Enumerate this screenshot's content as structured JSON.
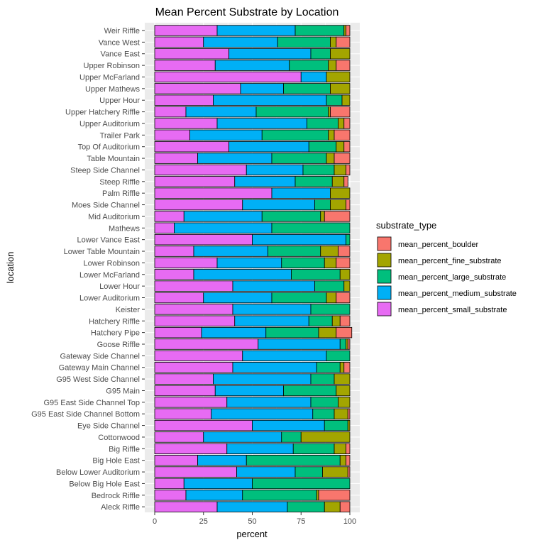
{
  "chart_data": {
    "type": "bar",
    "orientation": "horizontal",
    "stacked": true,
    "title": "Mean Percent Substrate by Location",
    "xlabel": "percent",
    "ylabel": "location",
    "xlim": [
      0,
      100
    ],
    "xticks": [
      "0",
      "25",
      "50",
      "75",
      "100"
    ],
    "grid": true,
    "legend_position": "right",
    "legend_title": "substrate_type",
    "legend_order": [
      "mean_percent_boulder",
      "mean_percent_fine_substrate",
      "mean_percent_large_substrate",
      "mean_percent_medium_substrate",
      "mean_percent_small_substrate"
    ],
    "colors": {
      "mean_percent_small_substrate": "#E76BF3",
      "mean_percent_medium_substrate": "#00B0F6",
      "mean_percent_large_substrate": "#00BF7D",
      "mean_percent_fine_substrate": "#A3A500",
      "mean_percent_boulder": "#F8766D"
    },
    "categories": [
      "Weir Riffle",
      "Vance West",
      "Vance East",
      "Upper Robinson",
      "Upper McFarland",
      "Upper Mathews",
      "Upper Hour",
      "Upper Hatchery Riffle",
      "Upper Auditorium",
      "Trailer Park",
      "Top Of Auditorium",
      "Table Mountain",
      "Steep Side Channel",
      "Steep Riffle",
      "Palm Riffle",
      "Moes Side Channel",
      "Mid Auditorium",
      "Mathews",
      "Lower Vance East",
      "Lower Table Mountain",
      "Lower Robinson",
      "Lower McFarland",
      "Lower Hour",
      "Lower Auditorium",
      "Keister",
      "Hatchery Riffle",
      "Hatchery Pipe",
      "Goose Riffle",
      "Gateway Side Channel",
      "Gateway Main Channel",
      "G95 West Side Channel",
      "G95 Main",
      "G95 East Side Channel Top",
      "G95 East Side Channel Bottom",
      "Eye Side Channel",
      "Cottonwood",
      "Big Riffle",
      "Big Hole East",
      "Below Lower Auditorium",
      "Below Big Hole East",
      "Bedrock Riffle",
      "Aleck Riffle"
    ],
    "series": [
      {
        "name": "mean_percent_small_substrate",
        "values": [
          32,
          25,
          38,
          31,
          75,
          44,
          30,
          16,
          32,
          18,
          38,
          22,
          47,
          41,
          60,
          45,
          15,
          10,
          50,
          20,
          32,
          20,
          40,
          25,
          40,
          41,
          24,
          53,
          45,
          40,
          30,
          31,
          37,
          29,
          50,
          25,
          37,
          22,
          42,
          15,
          16,
          32
        ]
      },
      {
        "name": "mean_percent_medium_substrate",
        "values": [
          40,
          38,
          42,
          38,
          13,
          22,
          58,
          36,
          46,
          37,
          41,
          38,
          29,
          31,
          30,
          37,
          40,
          50,
          48,
          38,
          33,
          50,
          42,
          35,
          40,
          38,
          33,
          42,
          43,
          43,
          50,
          35,
          43,
          52,
          37,
          40,
          34,
          25,
          30,
          35,
          29,
          36
        ]
      },
      {
        "name": "mean_percent_large_substrate",
        "values": [
          25,
          27,
          10,
          20,
          0,
          24,
          8,
          37,
          16,
          34,
          14,
          28,
          16,
          19,
          0,
          8,
          30,
          40,
          2,
          27,
          22,
          25,
          15,
          28,
          20,
          12,
          27,
          3,
          12,
          12,
          12,
          27,
          14,
          11,
          12,
          10,
          21,
          48,
          14,
          50,
          38,
          19
        ]
      },
      {
        "name": "mean_percent_fine_substrate",
        "values": [
          1,
          3,
          10,
          4,
          12,
          10,
          4,
          1,
          3,
          3,
          4,
          4,
          6,
          6,
          10,
          8,
          2,
          0,
          0,
          9,
          6,
          5,
          3,
          5,
          0,
          4,
          9,
          1,
          0,
          2,
          8,
          7,
          6,
          7,
          1,
          25,
          6,
          3,
          13,
          0,
          1,
          8
        ]
      },
      {
        "name": "mean_percent_boulder",
        "values": [
          2,
          7,
          0,
          7,
          0,
          0,
          0,
          10,
          3,
          8,
          3,
          8,
          2,
          2,
          0,
          2,
          13,
          0,
          0,
          6,
          7,
          0,
          0,
          7,
          0,
          5,
          8,
          1,
          0,
          3,
          0,
          0,
          0,
          1,
          0,
          0,
          2,
          2,
          1,
          0,
          16,
          5
        ]
      }
    ]
  }
}
